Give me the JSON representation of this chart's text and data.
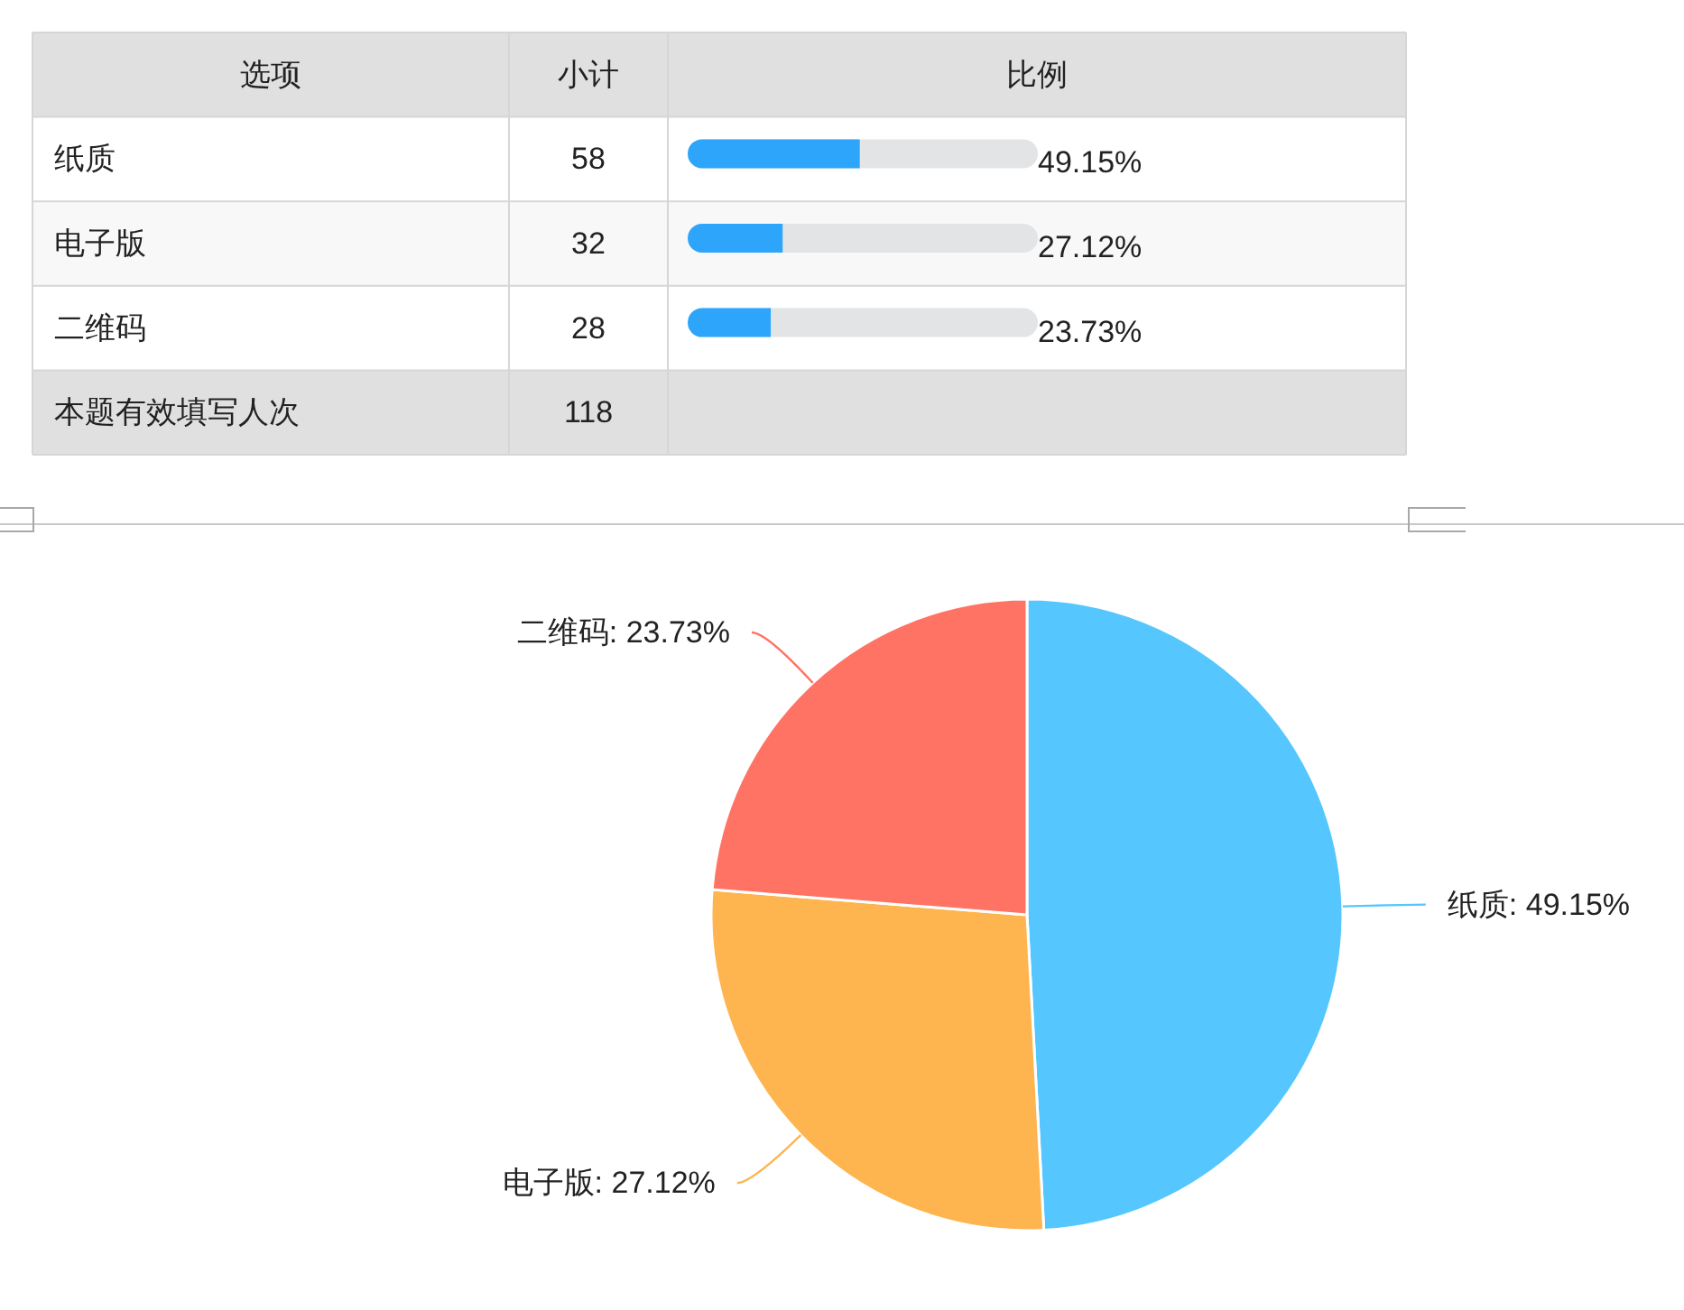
{
  "chart_data": [
    {
      "type": "bar",
      "orientation": "horizontal",
      "ylabel": "选项",
      "xlabel": "比例",
      "categories": [
        "纸质",
        "电子版",
        "二维码"
      ],
      "values": [
        49.15,
        27.12,
        23.73
      ],
      "value_labels": [
        "49.15%",
        "27.12%",
        "23.73%"
      ],
      "color": "#2ca5fa",
      "xlim": [
        0,
        100
      ],
      "annotations": [
        "小计",
        "58",
        "32",
        "28",
        "本题有效填写人次",
        "118"
      ]
    },
    {
      "type": "pie",
      "categories": [
        "纸质",
        "电子版",
        "二维码"
      ],
      "values": [
        49.15,
        27.12,
        23.73
      ],
      "colors": [
        "#55c7fe",
        "#feb44f",
        "#ff7365"
      ],
      "value_labels": [
        "49.15%",
        "27.12%",
        "23.73%"
      ]
    }
  ]
}
